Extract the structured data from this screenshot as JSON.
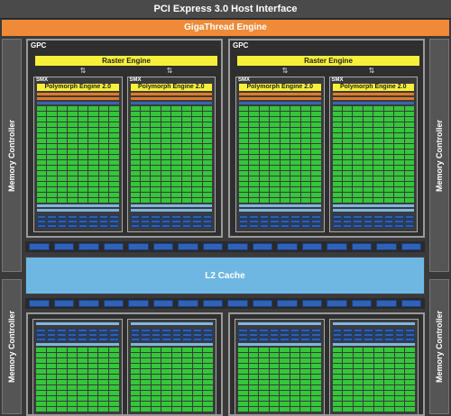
{
  "header": {
    "pcie": "PCI Express 3.0 Host Interface",
    "gigathread": "GigaThread Engine"
  },
  "memory_controller_label": "Memory Controller",
  "l2_cache": "L2 Cache",
  "gpc_label": "GPC",
  "raster_engine": "Raster Engine",
  "smx_label": "SMX",
  "polymorph_engine": "Polymorph Engine 2.0",
  "colors": {
    "giga": "#ee8a38",
    "raster": "#f6f03a",
    "core": "#34c73a",
    "l2": "#6fb7e3",
    "ldst": "#2d5fb3"
  }
}
